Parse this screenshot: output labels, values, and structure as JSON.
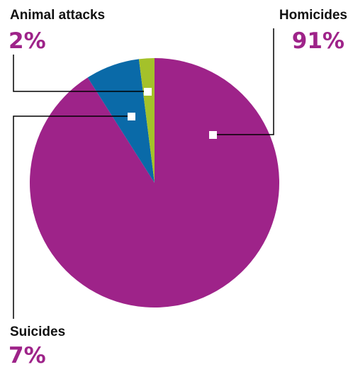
{
  "chart_data": {
    "type": "pie",
    "categories": [
      "Homicides",
      "Suicides",
      "Animal attacks"
    ],
    "values": [
      91,
      7,
      2
    ],
    "value_labels": [
      "91%",
      "7%",
      "2%"
    ],
    "colors": [
      "#9e2389",
      "#0a6aa8",
      "#a4c12a"
    ],
    "start": "12 o'clock, clockwise",
    "legend": "callout labels with leader lines"
  }
}
